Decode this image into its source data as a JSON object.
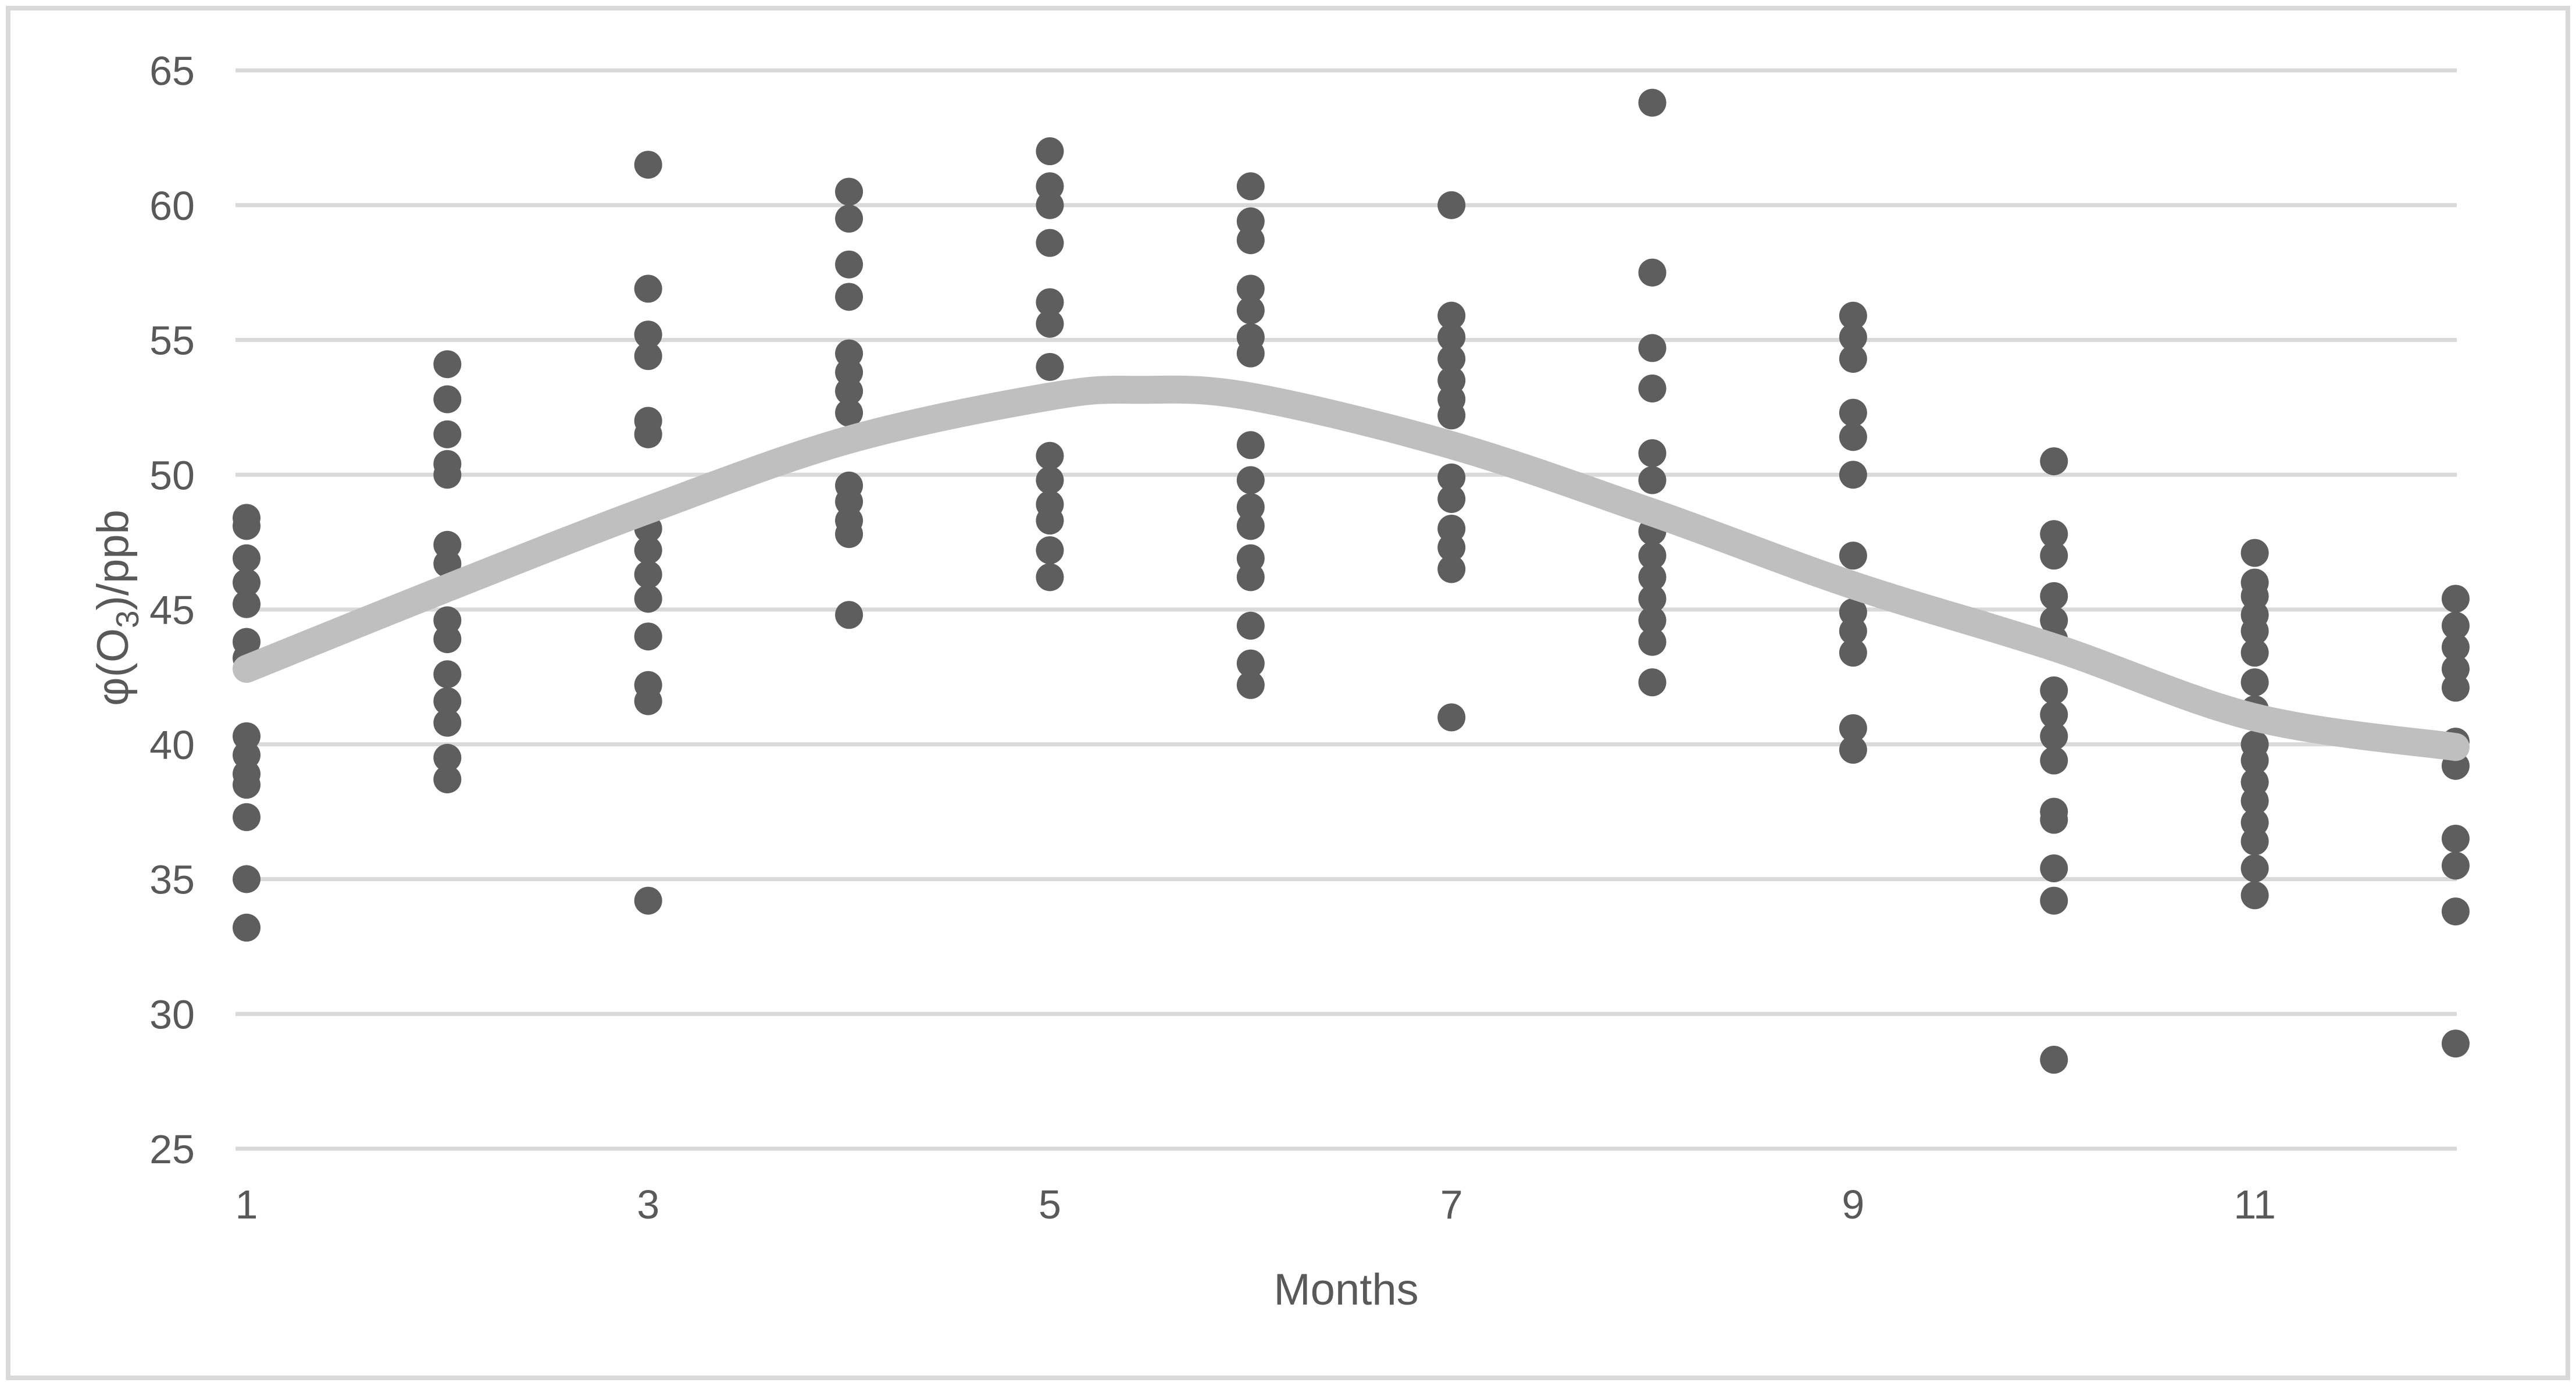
{
  "chart_data": {
    "type": "scatter",
    "title": "",
    "xlabel": "Months",
    "ylabel": {
      "prefix": "φ(O",
      "sub": "3",
      "suffix": ")/ppb"
    },
    "xlim": [
      1,
      12
    ],
    "ylim": [
      25,
      65
    ],
    "x_ticks": [
      1,
      3,
      5,
      7,
      9,
      11
    ],
    "y_ticks": [
      65,
      60,
      55,
      50,
      45,
      40,
      35,
      30,
      25
    ],
    "grid": "horizontal",
    "legend": "none",
    "series": [
      {
        "name": "monthly-ozone-observations",
        "type": "scatter",
        "color": "#5e5e5e",
        "months": [
          {
            "month": 1,
            "values": [
              48.4,
              48.1,
              46.9,
              46.0,
              45.2,
              43.8,
              43.2,
              40.3,
              39.6,
              38.9,
              38.5,
              37.3,
              35.0,
              33.2
            ]
          },
          {
            "month": 2,
            "values": [
              54.1,
              52.8,
              51.5,
              50.4,
              50.0,
              47.4,
              46.7,
              44.6,
              43.9,
              42.6,
              41.6,
              40.8,
              39.5,
              38.7
            ]
          },
          {
            "month": 3,
            "values": [
              61.5,
              56.9,
              55.2,
              54.4,
              52.0,
              51.5,
              48.0,
              47.2,
              46.3,
              45.4,
              44.0,
              42.2,
              41.6,
              34.2
            ]
          },
          {
            "month": 4,
            "values": [
              60.5,
              59.5,
              57.8,
              56.6,
              54.5,
              53.8,
              53.1,
              52.3,
              49.6,
              49.0,
              48.3,
              47.8,
              44.8
            ]
          },
          {
            "month": 5,
            "values": [
              62.0,
              60.7,
              60.0,
              58.6,
              56.4,
              55.6,
              54.0,
              50.7,
              49.8,
              48.9,
              48.3,
              47.2,
              46.2
            ]
          },
          {
            "month": 6,
            "values": [
              60.7,
              59.4,
              58.7,
              56.9,
              56.1,
              55.1,
              54.5,
              51.1,
              49.8,
              48.8,
              48.1,
              46.9,
              46.2,
              44.4,
              43.0,
              42.2
            ]
          },
          {
            "month": 7,
            "values": [
              60.0,
              55.9,
              55.1,
              54.3,
              53.5,
              52.8,
              52.2,
              49.9,
              49.1,
              48.0,
              47.3,
              46.5,
              41.0
            ]
          },
          {
            "month": 8,
            "values": [
              63.8,
              57.5,
              54.7,
              53.2,
              50.8,
              49.8,
              47.9,
              47.0,
              46.2,
              45.4,
              44.6,
              43.8,
              42.3
            ]
          },
          {
            "month": 9,
            "values": [
              55.9,
              55.1,
              54.3,
              52.3,
              51.4,
              50.0,
              47.0,
              44.9,
              44.2,
              43.4,
              40.6,
              39.8
            ]
          },
          {
            "month": 10,
            "values": [
              50.5,
              47.8,
              47.0,
              45.5,
              44.6,
              43.9,
              42.0,
              41.1,
              40.3,
              39.4,
              37.5,
              37.2,
              35.4,
              34.2,
              28.3
            ]
          },
          {
            "month": 11,
            "values": [
              47.1,
              46.0,
              45.5,
              44.8,
              44.2,
              43.4,
              42.3,
              41.3,
              40.0,
              39.4,
              38.6,
              37.9,
              37.1,
              36.4,
              35.4,
              34.4
            ]
          },
          {
            "month": 12,
            "values": [
              45.4,
              44.4,
              43.6,
              42.8,
              42.1,
              40.1,
              39.2,
              36.5,
              35.5,
              33.8,
              28.9
            ]
          }
        ]
      },
      {
        "name": "smoothed-trend-line",
        "type": "smooth-line",
        "color": "#bfbfbf",
        "points": [
          [
            1,
            42.8
          ],
          [
            2,
            45.8
          ],
          [
            3,
            48.7
          ],
          [
            4,
            51.3
          ],
          [
            5,
            52.9
          ],
          [
            5.45,
            53.15
          ],
          [
            6,
            52.9
          ],
          [
            7,
            51.1
          ],
          [
            8,
            48.6
          ],
          [
            9,
            45.9
          ],
          [
            10,
            43.6
          ],
          [
            11,
            41.0
          ],
          [
            12,
            39.9
          ]
        ]
      }
    ]
  },
  "colors": {
    "background": "#ffffff",
    "frame_border": "#d9d9d9",
    "gridline": "#d9d9d9",
    "scatter_dot": "#5e5e5e",
    "trend_line": "#bfbfbf",
    "text": "#595959"
  }
}
